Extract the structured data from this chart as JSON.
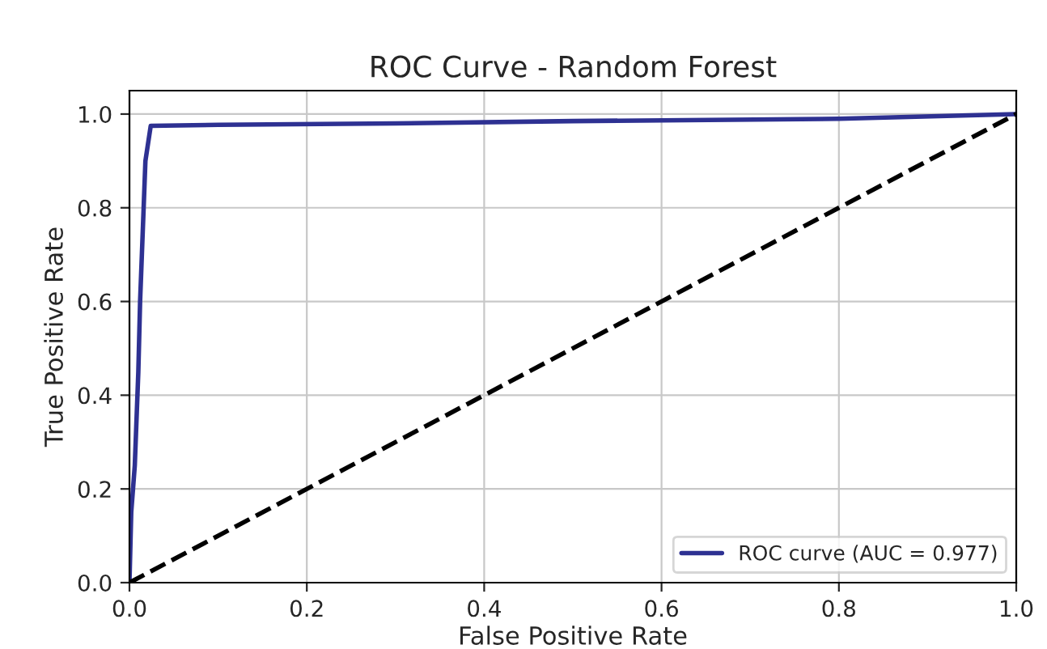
{
  "chart_data": {
    "type": "line",
    "title": "ROC Curve - Random Forest",
    "xlabel": "False Positive Rate",
    "ylabel": "True Positive Rate",
    "xlim": [
      0.0,
      1.0
    ],
    "ylim": [
      0.0,
      1.05
    ],
    "xticks": [
      {
        "value": 0,
        "label": "0.0"
      },
      0.2,
      0.4,
      0.6,
      0.8,
      {
        "value": 1,
        "label": "1.0"
      }
    ],
    "yticks": [
      {
        "value": 0,
        "label": "0.0"
      },
      0.2,
      0.4,
      0.6,
      0.8,
      {
        "value": 1,
        "label": "1.0"
      }
    ],
    "grid": true,
    "legend": "bottom right",
    "series": [
      {
        "name": "ROC curve (AUC = 0.977)",
        "color": "#2e3192",
        "line_style": "solid",
        "x": [
          0,
          0.002,
          0.004,
          0.006,
          0.01,
          0.012,
          0.016,
          0.018,
          0.024,
          0.1,
          0.3,
          0.5,
          0.8,
          1
        ],
        "values": [
          0,
          0.15,
          0.2,
          0.25,
          0.45,
          0.6,
          0.8,
          0.9,
          0.975,
          0.977,
          0.98,
          0.985,
          0.99,
          1
        ]
      },
      {
        "color": "#000000",
        "line_style": "dashed",
        "x": [
          0,
          1
        ],
        "values": [
          0,
          1
        ]
      }
    ]
  }
}
